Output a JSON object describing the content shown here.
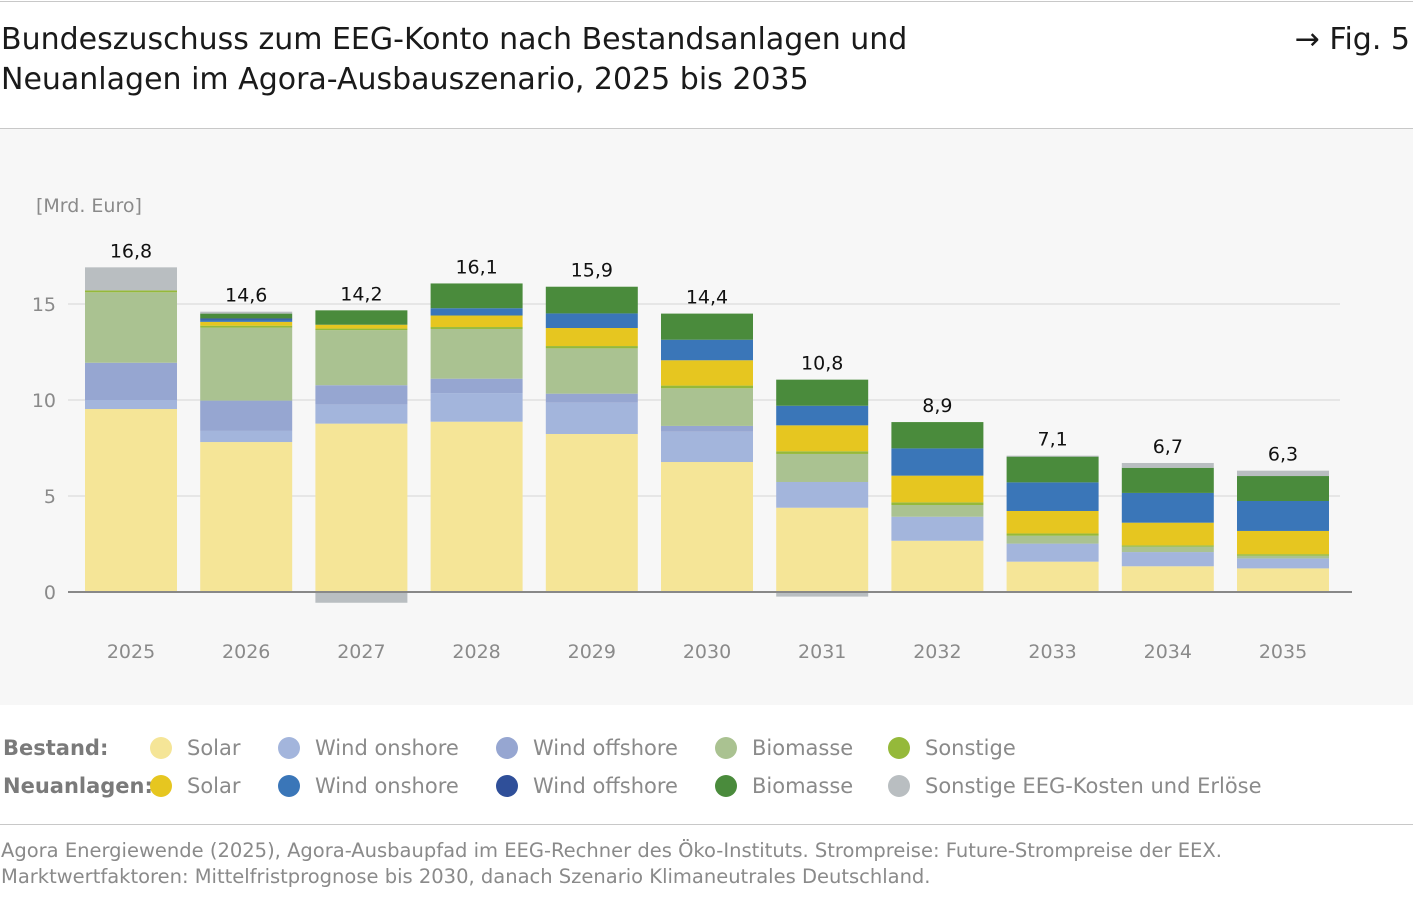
{
  "header": {
    "title": "Bundeszuschuss zum EEG-Konto nach Bestandsanlagen und Neuanlagen im Agora-Ausbauszenario, 2025 bis 2035",
    "fig_label": "→ Fig. 5"
  },
  "legend": {
    "bestand_label": "Bestand:",
    "neu_label": "Neuanlagen:",
    "bestand": [
      {
        "label": "Solar",
        "color": "#f5e597"
      },
      {
        "label": "Wind onshore",
        "color": "#a3b5dc"
      },
      {
        "label": "Wind offshore",
        "color": "#96a6d1"
      },
      {
        "label": "Biomasse",
        "color": "#aac291"
      },
      {
        "label": "Sonstige",
        "color": "#95b93a"
      }
    ],
    "neu": [
      {
        "label": "Solar",
        "color": "#e6c620"
      },
      {
        "label": "Wind onshore",
        "color": "#3a76b8"
      },
      {
        "label": "Wind offshore",
        "color": "#2f4f99"
      },
      {
        "label": "Biomasse",
        "color": "#4a8b3c"
      },
      {
        "label": "Sonstige EEG-Kosten und Erlöse",
        "color": "#b9bec1"
      }
    ]
  },
  "source": "Agora Energiewende (2025), Agora-Ausbaupfad im EEG-Rechner des Öko-Instituts. Strompreise: Future-Strompreise der EEX. Marktwertfaktoren: Mittelfristprognose bis 2030, danach Szenario Klimaneutrales Deutschland.",
  "chart_data": {
    "type": "bar",
    "stacked": true,
    "ylabel": "[Mrd. Euro]",
    "ylim": [
      -0.6,
      18
    ],
    "yticks": [
      0,
      5,
      10,
      15
    ],
    "grid": true,
    "legend_position": "bottom",
    "categories": [
      "2025",
      "2026",
      "2027",
      "2028",
      "2029",
      "2030",
      "2031",
      "2032",
      "2033",
      "2034",
      "2035"
    ],
    "totals": [
      "16,8",
      "14,6",
      "14,2",
      "16,1",
      "15,9",
      "14,4",
      "10,8",
      "8,9",
      "7,1",
      "6,7",
      "6,3"
    ],
    "series": [
      {
        "name": "Bestand: Solar",
        "color": "#f5e597",
        "values": [
          9.53,
          7.81,
          8.77,
          8.87,
          8.23,
          6.77,
          4.39,
          2.67,
          1.58,
          1.34,
          1.23
        ]
      },
      {
        "name": "Bestand: Wind onshore",
        "color": "#a3b5dc",
        "values": [
          0.47,
          0.58,
          1.0,
          1.49,
          1.63,
          1.58,
          1.34,
          1.25,
          0.94,
          0.74,
          0.52
        ]
      },
      {
        "name": "Bestand: Wind offshore",
        "color": "#96a6d1",
        "values": [
          1.94,
          1.58,
          1.0,
          0.75,
          0.47,
          0.3,
          0.0,
          0.0,
          0.0,
          0.0,
          0.0
        ]
      },
      {
        "name": "Bestand: Biomasse",
        "color": "#aac291",
        "values": [
          3.67,
          3.8,
          2.87,
          2.59,
          2.36,
          1.96,
          1.46,
          0.61,
          0.41,
          0.28,
          0.14
        ]
      },
      {
        "name": "Bestand: Sonstige",
        "color": "#95b93a",
        "values": [
          0.1,
          0.1,
          0.08,
          0.1,
          0.12,
          0.14,
          0.14,
          0.14,
          0.12,
          0.07,
          0.08
        ]
      },
      {
        "name": "Neuanlagen: Solar",
        "color": "#e6c620",
        "values": [
          0,
          0.2,
          0.2,
          0.6,
          0.94,
          1.32,
          1.35,
          1.39,
          1.17,
          1.18,
          1.21
        ]
      },
      {
        "name": "Neuanlagen: Wind onshore",
        "color": "#3a76b8",
        "values": [
          0,
          0.12,
          0,
          0.38,
          0.76,
          1.07,
          1.02,
          1.42,
          1.49,
          1.55,
          1.56
        ]
      },
      {
        "name": "Neuanlagen: Wind offshore",
        "color": "#2f4f99",
        "values": [
          0,
          0.06,
          0,
          0,
          0,
          0,
          0,
          0,
          0,
          0,
          0
        ]
      },
      {
        "name": "Neuanlagen: Biomasse",
        "color": "#4a8b3c",
        "values": [
          0,
          0.25,
          0.75,
          1.29,
          1.39,
          1.36,
          1.36,
          1.37,
          1.34,
          1.31,
          1.3
        ]
      },
      {
        "name": "Neuanlagen: Sonstige EEG-Kosten und Erlöse",
        "color": "#b9bec1",
        "values": [
          1.2,
          0.1,
          -0.56,
          0,
          0,
          0,
          -0.24,
          0,
          0.05,
          0.25,
          0.28
        ]
      }
    ]
  }
}
